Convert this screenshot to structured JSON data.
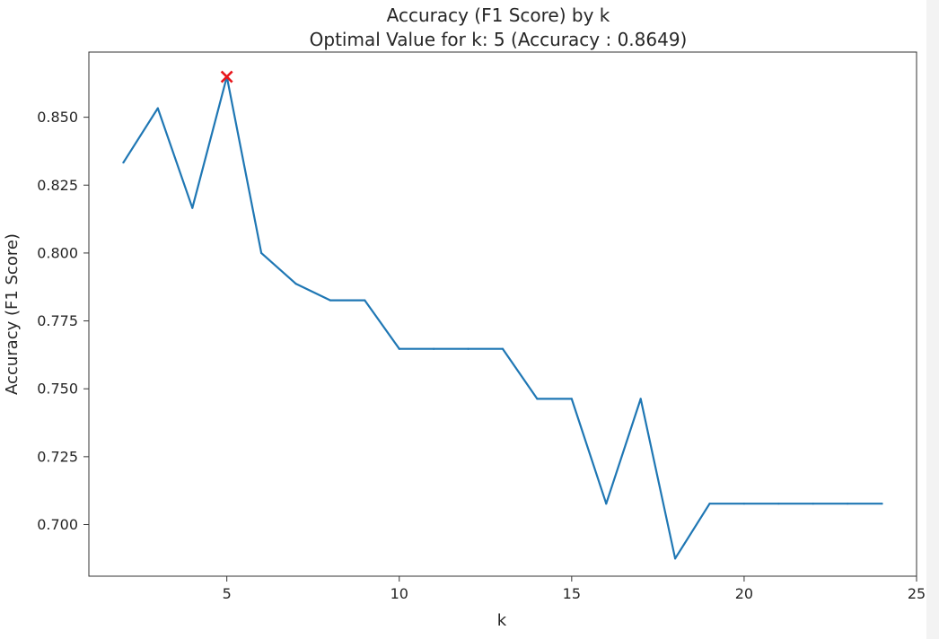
{
  "chart_data": {
    "type": "line",
    "title": "Accuracy (F1 Score) by k",
    "subtitle": "Optimal Value for k: 5 (Accuracy : 0.8649)",
    "xlabel": "k",
    "ylabel": "Accuracy (F1 Score)",
    "xlim": [
      1,
      25
    ],
    "ylim": [
      0.681,
      0.874
    ],
    "xticks": [
      5,
      10,
      15,
      20,
      25
    ],
    "yticks": [
      0.7,
      0.725,
      0.75,
      0.775,
      0.8,
      0.825,
      0.85
    ],
    "ytick_labels": [
      "0.700",
      "0.725",
      "0.750",
      "0.775",
      "0.800",
      "0.825",
      "0.850"
    ],
    "grid": false,
    "series": [
      {
        "color": "#1f77b4",
        "x": [
          2,
          3,
          4,
          5,
          6,
          7,
          8,
          9,
          10,
          11,
          12,
          13,
          14,
          15,
          16,
          17,
          18,
          19,
          20,
          21,
          22,
          23,
          24
        ],
        "y": [
          0.8333,
          0.8533,
          0.8166,
          0.8649,
          0.8,
          0.7887,
          0.7826,
          0.7826,
          0.7647,
          0.7647,
          0.7647,
          0.7647,
          0.7463,
          0.7463,
          0.7077,
          0.7463,
          0.6875,
          0.7077,
          0.7077,
          0.7077,
          0.7077,
          0.7077,
          0.7077
        ]
      }
    ],
    "marker": {
      "x": 5,
      "y": 0.8649,
      "symbol": "x",
      "color": "#e8161b"
    }
  }
}
